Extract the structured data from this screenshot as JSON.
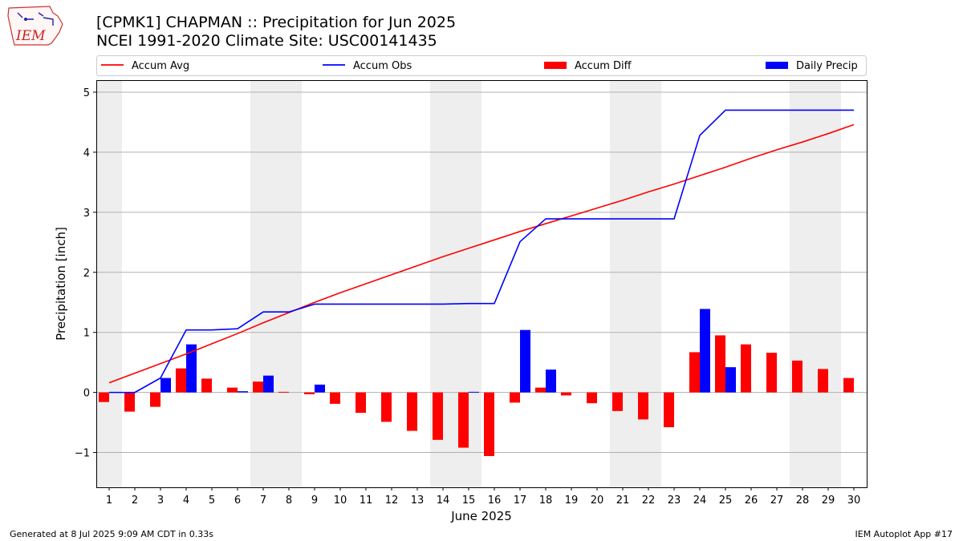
{
  "header": {
    "title_line1": "[CPMK1] CHAPMAN :: Precipitation for Jun 2025",
    "title_line2": "NCEI 1991-2020 Climate Site: USC00141435",
    "logo_text": "IEM"
  },
  "footer": {
    "left": "Generated at 8 Jul 2025 9:09 AM CDT in 0.33s",
    "right": "IEM Autoplot App #17"
  },
  "colors": {
    "accum_avg": "#ff0000",
    "accum_obs": "#0000ff",
    "accum_diff": "#ff0000",
    "daily_precip": "#0000ff",
    "weekend_shade": "#eeeeee",
    "grid": "#b0b0b0"
  },
  "chart_data": {
    "type": "bar",
    "xlabel": "June 2025",
    "ylabel": "Precipitation [inch]",
    "ylim": [
      -1.58,
      5.2
    ],
    "yticks": [
      -1,
      0,
      1,
      2,
      3,
      4,
      5
    ],
    "ytick_labels": [
      "−1",
      "0",
      "1",
      "2",
      "3",
      "4",
      "5"
    ],
    "grid": "horizontal",
    "legend_position": "top",
    "days": [
      1,
      2,
      3,
      4,
      5,
      6,
      7,
      8,
      9,
      10,
      11,
      12,
      13,
      14,
      15,
      16,
      17,
      18,
      19,
      20,
      21,
      22,
      23,
      24,
      25,
      26,
      27,
      28,
      29,
      30
    ],
    "shaded_days": [
      1,
      7,
      8,
      14,
      15,
      21,
      22,
      28,
      29
    ],
    "series": [
      {
        "name": "Accum Avg",
        "kind": "line",
        "values": [
          0.16,
          0.32,
          0.48,
          0.64,
          0.81,
          0.98,
          1.16,
          1.33,
          1.5,
          1.66,
          1.81,
          1.96,
          2.11,
          2.26,
          2.4,
          2.54,
          2.68,
          2.81,
          2.94,
          3.07,
          3.2,
          3.34,
          3.47,
          3.61,
          3.75,
          3.9,
          4.04,
          4.17,
          4.31,
          4.46
        ]
      },
      {
        "name": "Accum Obs",
        "kind": "line",
        "values": [
          0.0,
          0.0,
          0.24,
          1.04,
          1.04,
          1.06,
          1.34,
          1.34,
          1.47,
          1.47,
          1.47,
          1.47,
          1.47,
          1.47,
          1.48,
          1.48,
          2.51,
          2.89,
          2.89,
          2.89,
          2.89,
          2.89,
          2.89,
          4.28,
          4.7,
          4.7,
          4.7,
          4.7,
          4.7,
          4.7
        ]
      },
      {
        "name": "Accum Diff",
        "kind": "bar",
        "values": [
          -0.16,
          -0.32,
          -0.24,
          0.4,
          0.23,
          0.08,
          0.18,
          0.01,
          -0.03,
          -0.19,
          -0.34,
          -0.49,
          -0.64,
          -0.79,
          -0.92,
          -1.06,
          -0.17,
          0.08,
          -0.05,
          -0.18,
          -0.31,
          -0.45,
          -0.58,
          0.67,
          0.95,
          0.8,
          0.66,
          0.53,
          0.39,
          0.24
        ]
      },
      {
        "name": "Daily Precip",
        "kind": "bar",
        "values": [
          0.0,
          0.0,
          0.24,
          0.8,
          0.0,
          0.02,
          0.28,
          0.0,
          0.13,
          0.0,
          0.0,
          0.0,
          0.0,
          0.0,
          0.01,
          0.0,
          1.04,
          0.38,
          0.0,
          0.0,
          0.0,
          0.0,
          0.0,
          1.39,
          0.42,
          0.0,
          0.0,
          0.0,
          0.0,
          0.0
        ]
      }
    ]
  }
}
